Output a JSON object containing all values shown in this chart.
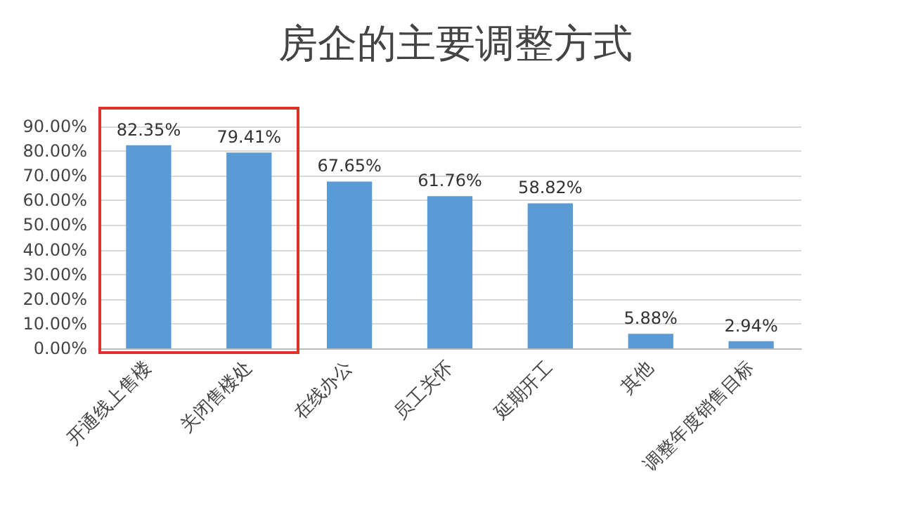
{
  "chart_data": {
    "type": "bar",
    "title": "房企的主要调整方式",
    "categories": [
      "开通线上售楼",
      "关闭售楼处",
      "在线办公",
      "员工关怀",
      "延期开工",
      "其他",
      "调整年度销售目标"
    ],
    "values": [
      82.35,
      79.41,
      67.65,
      61.76,
      58.82,
      5.88,
      2.94
    ],
    "value_labels": [
      "82.35%",
      "79.41%",
      "67.65%",
      "61.76%",
      "58.82%",
      "5.88%",
      "2.94%"
    ],
    "color": "#5b9bd5",
    "ylim": [
      0,
      90
    ],
    "yticks": [
      {
        "value": 0,
        "label": "0.00%"
      },
      {
        "value": 10,
        "label": "10.00%"
      },
      {
        "value": 20,
        "label": "20.00%"
      },
      {
        "value": 30,
        "label": "30.00%"
      },
      {
        "value": 40,
        "label": "40.00%"
      },
      {
        "value": 50,
        "label": "50.00%"
      },
      {
        "value": 60,
        "label": "60.00%"
      },
      {
        "value": 70,
        "label": "70.00%"
      },
      {
        "value": 80,
        "label": "80.00%"
      },
      {
        "value": 90,
        "label": "90.00%"
      }
    ],
    "grid": "y"
  }
}
